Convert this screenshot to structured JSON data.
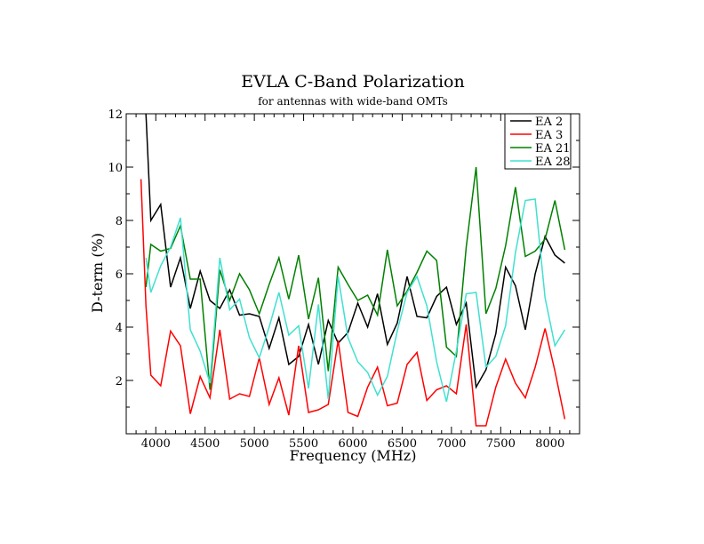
{
  "chart_data": {
    "type": "line",
    "title": "EVLA C-Band Polarization",
    "subtitle": "for antennas with wide-band OMTs",
    "xlabel": "Frequency (MHz)",
    "ylabel": "D-term (%)",
    "xlim": [
      3700,
      8300
    ],
    "ylim": [
      0,
      12
    ],
    "xticks": [
      4000,
      4500,
      5000,
      5500,
      6000,
      6500,
      7000,
      7500,
      8000
    ],
    "yticks": [
      2,
      4,
      6,
      8,
      10,
      12
    ],
    "legend_position": "top-right",
    "x": [
      3800,
      3850,
      3900,
      3950,
      4050,
      4150,
      4250,
      4350,
      4450,
      4550,
      4650,
      4750,
      4850,
      4950,
      5050,
      5150,
      5250,
      5350,
      5450,
      5550,
      5650,
      5750,
      5850,
      5950,
      6050,
      6150,
      6250,
      6350,
      6450,
      6550,
      6650,
      6750,
      6850,
      6950,
      7050,
      7150,
      7250,
      7350,
      7450,
      7550,
      7650,
      7750,
      7850,
      7950,
      8050,
      8150
    ],
    "series": [
      {
        "name": "EA 2",
        "color": "#000000",
        "values": [
          null,
          null,
          12.0,
          8.0,
          8.6,
          5.5,
          6.6,
          4.7,
          6.1,
          5.0,
          4.7,
          5.4,
          4.45,
          4.5,
          4.4,
          3.2,
          4.35,
          2.6,
          2.9,
          4.1,
          2.6,
          4.25,
          3.4,
          3.8,
          4.9,
          4.0,
          5.25,
          3.35,
          4.15,
          5.9,
          4.4,
          4.35,
          5.15,
          5.5,
          4.1,
          4.9,
          1.75,
          2.4,
          3.75,
          6.25,
          5.55,
          3.9,
          6.0,
          7.4,
          6.7,
          6.4
        ]
      },
      {
        "name": "EA 3",
        "color": "#ff0000",
        "values": [
          null,
          9.55,
          4.8,
          2.2,
          1.8,
          3.85,
          3.3,
          0.75,
          2.15,
          1.35,
          3.9,
          1.3,
          1.5,
          1.4,
          2.85,
          1.1,
          2.1,
          0.7,
          3.3,
          0.8,
          0.9,
          1.1,
          3.5,
          0.8,
          0.65,
          1.75,
          2.5,
          1.05,
          1.15,
          2.6,
          3.05,
          1.25,
          1.65,
          1.8,
          1.5,
          4.1,
          0.3,
          0.3,
          1.75,
          2.8,
          1.9,
          1.35,
          2.5,
          3.95,
          2.35,
          0.55
        ]
      },
      {
        "name": "EA 21",
        "color": "#008000",
        "values": [
          4.3,
          null,
          5.5,
          7.1,
          6.85,
          6.95,
          7.8,
          5.8,
          5.8,
          1.65,
          6.15,
          5.0,
          6.0,
          5.4,
          4.5,
          5.6,
          6.6,
          5.05,
          6.7,
          4.3,
          5.85,
          2.35,
          6.25,
          5.6,
          5.0,
          5.2,
          4.45,
          6.9,
          4.8,
          5.35,
          6.05,
          6.85,
          6.5,
          3.25,
          2.9,
          7.0,
          10.0,
          4.5,
          5.45,
          7.05,
          9.25,
          6.65,
          6.85,
          7.3,
          8.75,
          6.9
        ]
      },
      {
        "name": "EA 28",
        "color": "#40e0d0",
        "values": [
          7.6,
          null,
          6.6,
          5.3,
          6.3,
          7.0,
          8.1,
          3.9,
          3.1,
          1.9,
          6.6,
          4.65,
          5.05,
          3.6,
          2.85,
          4.0,
          5.3,
          3.7,
          4.05,
          1.7,
          4.85,
          1.3,
          5.9,
          3.6,
          2.7,
          2.3,
          1.45,
          2.15,
          3.85,
          5.3,
          5.9,
          4.8,
          2.7,
          1.2,
          3.1,
          5.25,
          5.3,
          2.5,
          2.9,
          4.05,
          6.8,
          8.75,
          8.8,
          5.1,
          3.3,
          3.9
        ]
      }
    ]
  }
}
